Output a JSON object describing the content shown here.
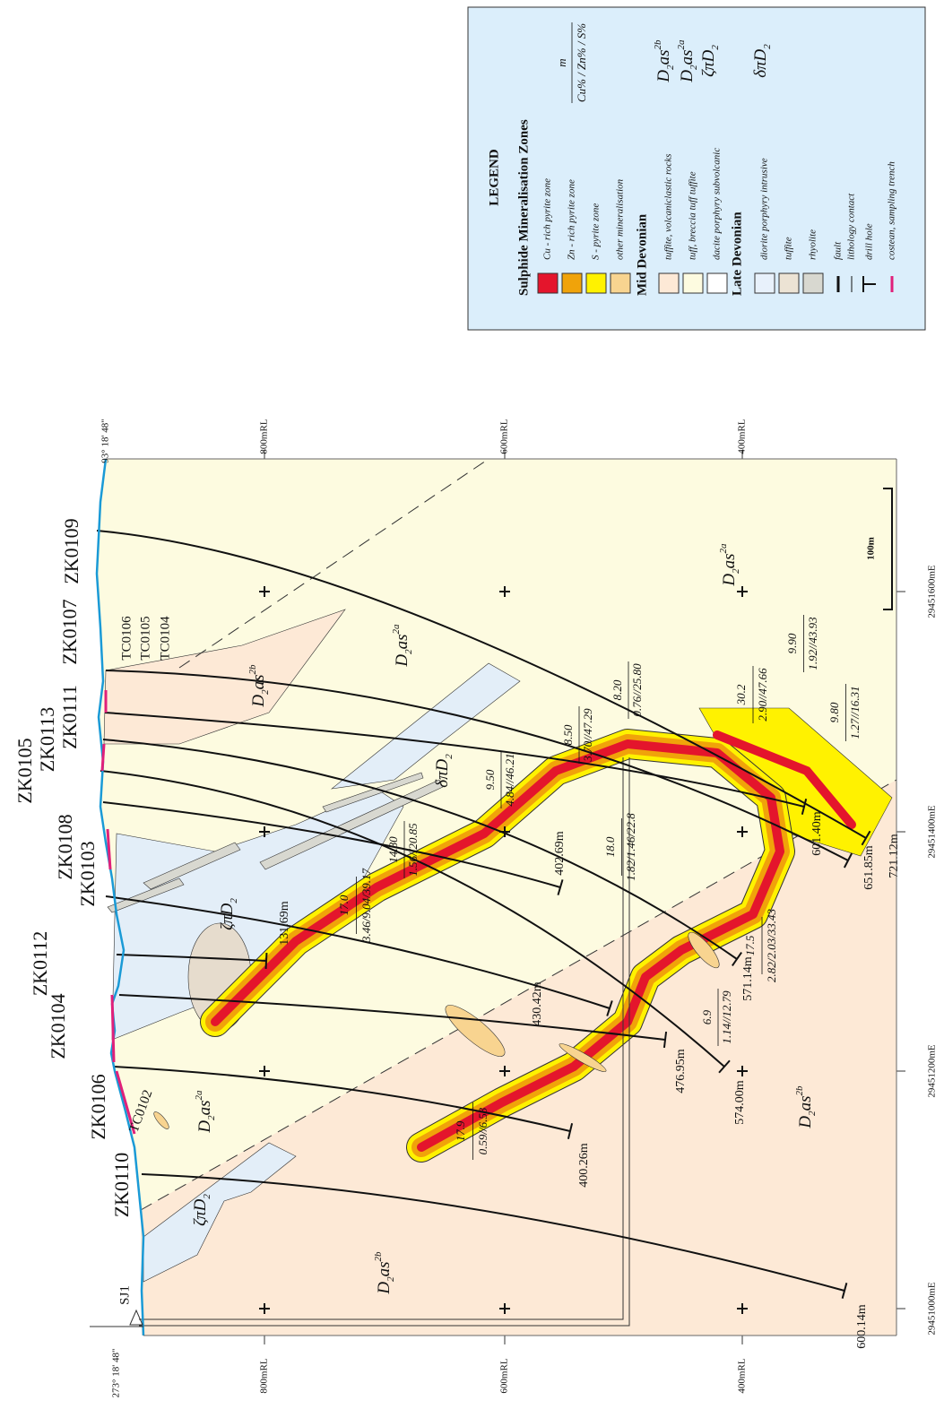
{
  "section": {
    "longitude_left": "273° 18' 48\"",
    "longitude_right": "93° 18' 48\"",
    "elevations": [
      "800mRL",
      "600mRL",
      "400mRL"
    ],
    "eastings": [
      "29451000mE",
      "29451200mE",
      "29451400mE",
      "29451600mE"
    ],
    "shaft": "SJ1",
    "scale": "100m",
    "drill_holes": [
      {
        "name": "ZK0109",
        "depth": "721.12m"
      },
      {
        "name": "ZK0107",
        "depth": "651.85m"
      },
      {
        "name": "ZK0111",
        "depth": "601.40m"
      },
      {
        "name": "ZK0113",
        "depth": "571.14m"
      },
      {
        "name": "ZK0105",
        "depth": "574.00m"
      },
      {
        "name": "ZK0108",
        "depth": "402.69m"
      },
      {
        "name": "ZK0103",
        "depth": "430.42m"
      },
      {
        "name": "ZK0112",
        "depth": "131.69m"
      },
      {
        "name": "ZK0104",
        "depth": "476.95m"
      },
      {
        "name": "ZK0106",
        "depth": "400.26m"
      },
      {
        "name": "ZK0110",
        "depth": "600.14m"
      }
    ],
    "trenches": [
      "TC0106",
      "TC0105",
      "TC0104",
      "TC0102"
    ],
    "intersections": [
      {
        "m": "9.50",
        "grades": "4.84//46.21"
      },
      {
        "m": "8.50",
        "grades": "3.70//47.29"
      },
      {
        "m": "8.20",
        "grades": "0.76//25.80"
      },
      {
        "m": "30.2",
        "grades": "2.90//47.66"
      },
      {
        "m": "9.90",
        "grades": "1.92//43.93"
      },
      {
        "m": "9.80",
        "grades": "1.27//16.31"
      },
      {
        "m": "17.0",
        "grades": "3.46/9.04/39.17"
      },
      {
        "m": "14.80",
        "grades": "1.56//20.85"
      },
      {
        "m": "18.0",
        "grades": "1.82/1.46/22.8"
      },
      {
        "m": "17.5",
        "grades": "2.82/2.03/33.43"
      },
      {
        "m": "6.9",
        "grades": "1.14//12.79"
      },
      {
        "m": "17.9",
        "grades": "0.59//6.53"
      }
    ]
  },
  "legend": {
    "title": "LEGEND",
    "groups": [
      {
        "heading": "Sulphide Mineralisation Zones",
        "items": [
          "Cu - rich pyrite zone",
          "Zn - rich pyrite zone",
          "S - pyrite zone",
          "other mineralisation"
        ]
      },
      {
        "heading": "Mid Devonian",
        "items": [
          "tuffite, volcaniclastic rocks",
          "tuff, breccia tuff tuffite",
          "dacite porphyry subvolcanic"
        ]
      },
      {
        "heading": "Late Devonian",
        "items": [
          "diorite porphyry intrusive",
          "tuffite",
          "rhyolite"
        ]
      }
    ],
    "symbols": [
      "fault",
      "lithology contact",
      "drill hole",
      "costean, sampling trench"
    ],
    "grade_format": {
      "m": "m",
      "grades": "Cu% / Zn% / S%"
    },
    "units": [
      {
        "base": "D",
        "sub": "2",
        "rest": "as",
        "sup": "2b"
      },
      {
        "base": "D",
        "sub": "2",
        "rest": "as",
        "sup": "2a"
      },
      {
        "pre": "ζπ",
        "base": "D",
        "sub": "2"
      },
      {
        "pre": "δπ",
        "base": "D",
        "sub": "2"
      }
    ]
  }
}
